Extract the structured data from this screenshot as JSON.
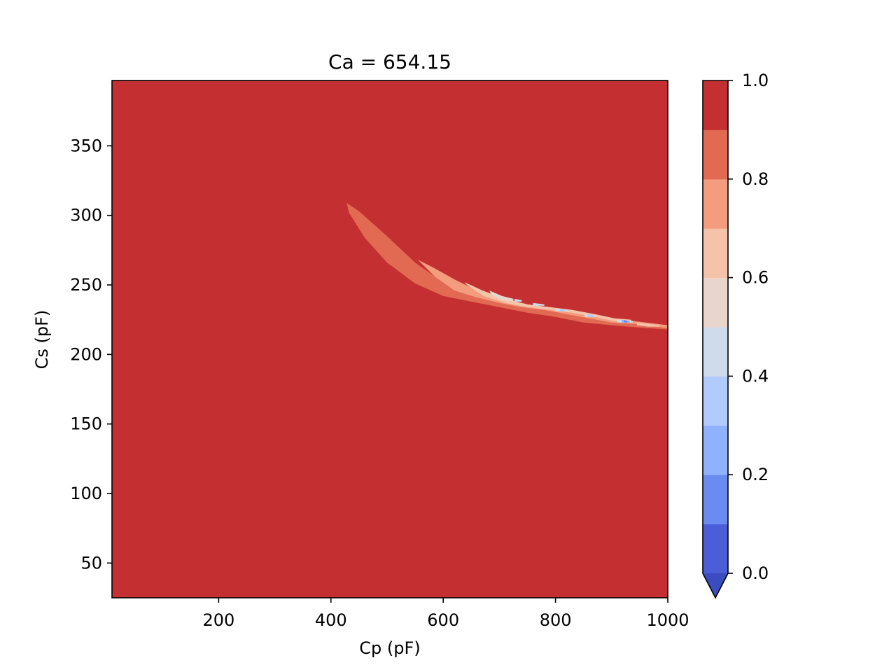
{
  "chart_data": {
    "type": "contourf",
    "title": "Ca = 654.15",
    "xlabel": "Cp (pF)",
    "ylabel": "Cs (pF)",
    "xlim": [
      10,
      1000
    ],
    "ylim": [
      25,
      397
    ],
    "xticks": [
      200,
      400,
      600,
      800,
      1000
    ],
    "yticks": [
      50,
      100,
      150,
      200,
      250,
      300,
      350
    ],
    "background_level": [
      0.9,
      1.0
    ],
    "colormap": "coolwarm",
    "colorbar": {
      "ticks": [
        0.0,
        0.2,
        0.4,
        0.6,
        0.8,
        1.0
      ],
      "tick_labels": [
        "0.0",
        "0.2",
        "0.4",
        "0.6",
        "0.8",
        "1.0"
      ],
      "extend": "min",
      "levels": [
        {
          "range": [
            0.0,
            0.1
          ],
          "color": "#4b5ed7"
        },
        {
          "range": [
            0.1,
            0.2
          ],
          "color": "#6a8bef"
        },
        {
          "range": [
            0.2,
            0.3
          ],
          "color": "#8fb1fe"
        },
        {
          "range": [
            0.3,
            0.4
          ],
          "color": "#b1cbfc"
        },
        {
          "range": [
            0.4,
            0.5
          ],
          "color": "#cfdaea"
        },
        {
          "range": [
            0.5,
            0.6
          ],
          "color": "#e8d6cc"
        },
        {
          "range": [
            0.6,
            0.7
          ],
          "color": "#f5c2aa"
        },
        {
          "range": [
            0.7,
            0.8
          ],
          "color": "#f39d7e"
        },
        {
          "range": [
            0.8,
            0.9
          ],
          "color": "#e26952"
        },
        {
          "range": [
            0.9,
            1.0
          ],
          "color": "#c43032"
        }
      ],
      "under_color": "#3b4cc0"
    },
    "regions": [
      {
        "level": [
          0.8,
          0.9
        ],
        "color": "#e26952",
        "outline": [
          [
            428,
            309
          ],
          [
            450,
            303
          ],
          [
            500,
            285
          ],
          [
            550,
            266
          ],
          [
            600,
            252
          ],
          [
            650,
            244
          ],
          [
            700,
            239
          ],
          [
            750,
            235
          ],
          [
            800,
            231
          ],
          [
            850,
            227
          ],
          [
            900,
            225
          ],
          [
            960,
            222
          ],
          [
            1000,
            221
          ],
          [
            1000,
            218
          ],
          [
            960,
            219
          ],
          [
            900,
            221
          ],
          [
            850,
            223
          ],
          [
            800,
            227
          ],
          [
            750,
            230
          ],
          [
            700,
            234
          ],
          [
            650,
            238
          ],
          [
            600,
            242
          ],
          [
            550,
            251
          ],
          [
            500,
            266
          ],
          [
            460,
            284
          ],
          [
            432,
            302
          ]
        ]
      },
      {
        "level": [
          0.7,
          0.8
        ],
        "color": "#f39d7e",
        "outline": [
          [
            555,
            268
          ],
          [
            580,
            263
          ],
          [
            620,
            254
          ],
          [
            660,
            246
          ],
          [
            700,
            240
          ],
          [
            740,
            236
          ],
          [
            780,
            234
          ],
          [
            820,
            232
          ],
          [
            860,
            229
          ],
          [
            900,
            226
          ],
          [
            940,
            224
          ],
          [
            980,
            222
          ],
          [
            1000,
            221
          ],
          [
            1000,
            219
          ],
          [
            980,
            220
          ],
          [
            940,
            222
          ],
          [
            900,
            223
          ],
          [
            860,
            226
          ],
          [
            820,
            229
          ],
          [
            780,
            232
          ],
          [
            740,
            234
          ],
          [
            700,
            237
          ],
          [
            660,
            241
          ],
          [
            620,
            246
          ],
          [
            585,
            256
          ]
        ]
      },
      {
        "level": [
          0.6,
          0.7
        ],
        "color": "#f5c2aa",
        "outline": [
          [
            638,
            252
          ],
          [
            670,
            246
          ],
          [
            710,
            240
          ],
          [
            750,
            236
          ],
          [
            790,
            234
          ],
          [
            830,
            232
          ],
          [
            870,
            229
          ],
          [
            905,
            226
          ],
          [
            935,
            225
          ],
          [
            935,
            223
          ],
          [
            905,
            224
          ],
          [
            870,
            227
          ],
          [
            830,
            230
          ],
          [
            790,
            232
          ],
          [
            750,
            234
          ],
          [
            710,
            237
          ],
          [
            672,
            242
          ],
          [
            642,
            250
          ]
        ]
      },
      {
        "level": [
          0.6,
          0.7
        ],
        "color": "#f5c2aa",
        "outline": [
          [
            945,
            223
          ],
          [
            965,
            222
          ],
          [
            985,
            221
          ],
          [
            985,
            220
          ],
          [
            965,
            220
          ],
          [
            945,
            221
          ]
        ]
      },
      {
        "level": [
          0.5,
          0.6
        ],
        "color": "#e8d6cc",
        "outline": [
          [
            682,
            246
          ],
          [
            705,
            242
          ],
          [
            725,
            240
          ],
          [
            725,
            238
          ],
          [
            705,
            239
          ],
          [
            686,
            243
          ]
        ]
      },
      {
        "level": [
          0.4,
          0.5
        ],
        "color": "#cfdaea",
        "outline": [
          [
            727,
            240
          ],
          [
            740,
            239
          ],
          [
            740,
            238
          ],
          [
            727,
            238
          ]
        ]
      },
      {
        "level": [
          0.4,
          0.5
        ],
        "color": "#cfdaea",
        "outline": [
          [
            760,
            237
          ],
          [
            780,
            236
          ],
          [
            780,
            235
          ],
          [
            760,
            235
          ]
        ]
      },
      {
        "level": [
          0.4,
          0.5
        ],
        "color": "#cfdaea",
        "outline": [
          [
            800,
            233
          ],
          [
            822,
            232
          ],
          [
            822,
            231
          ],
          [
            800,
            231
          ]
        ]
      },
      {
        "level": [
          0.4,
          0.5
        ],
        "color": "#cfdaea",
        "outline": [
          [
            852,
            229
          ],
          [
            872,
            228
          ],
          [
            872,
            227
          ],
          [
            852,
            227
          ]
        ]
      },
      {
        "level": [
          0.4,
          0.5
        ],
        "color": "#cfdaea",
        "outline": [
          [
            910,
            225
          ],
          [
            938,
            224
          ],
          [
            938,
            223
          ],
          [
            910,
            223
          ]
        ]
      },
      {
        "level": [
          0.3,
          0.4
        ],
        "color": "#b1cbfc",
        "outline": [
          [
            808,
            233
          ],
          [
            816,
            232
          ],
          [
            816,
            231
          ],
          [
            808,
            231
          ]
        ]
      },
      {
        "level": [
          0.3,
          0.4
        ],
        "color": "#b1cbfc",
        "outline": [
          [
            858,
            229
          ],
          [
            868,
            228
          ],
          [
            868,
            227
          ],
          [
            858,
            227
          ]
        ]
      },
      {
        "level": [
          0.2,
          0.3
        ],
        "color": "#8fb1fe",
        "outline": [
          [
            918,
            225
          ],
          [
            932,
            224
          ],
          [
            932,
            223
          ],
          [
            918,
            223
          ]
        ]
      },
      {
        "level": [
          0.1,
          0.2
        ],
        "color": "#6a8bef",
        "outline": [
          [
            922,
            225
          ],
          [
            928,
            224
          ],
          [
            928,
            223
          ],
          [
            922,
            223
          ]
        ]
      }
    ]
  }
}
